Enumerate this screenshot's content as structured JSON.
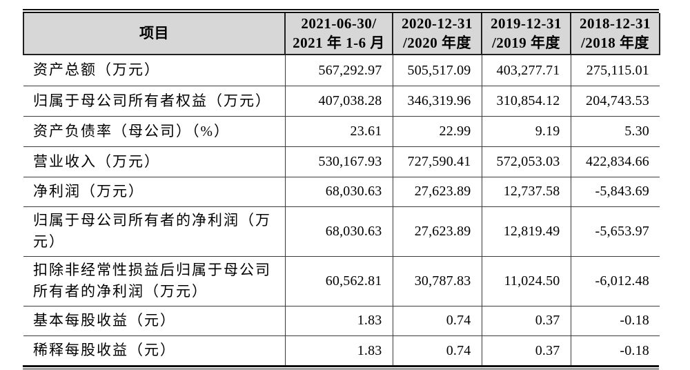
{
  "colors": {
    "header_bg": "#d7d7d7",
    "border": "#3a3a3a",
    "rule": "#0d0d0d",
    "text": "#000000",
    "page_bg": "#ffffff"
  },
  "table": {
    "header": {
      "item_label": "项目",
      "periods": [
        {
          "line1": "2021-06-30/",
          "line2": "2021 年 1-6 月"
        },
        {
          "line1": "2020-12-31",
          "line2": "/2020 年度"
        },
        {
          "line1": "2019-12-31",
          "line2": "/2019 年度"
        },
        {
          "line1": "2018-12-31",
          "line2": "/2018 年度"
        }
      ]
    },
    "rows": [
      {
        "label": "资产总额（万元）",
        "values": [
          "567,292.97",
          "505,517.09",
          "403,277.71",
          "275,115.01"
        ]
      },
      {
        "label": "归属于母公司所有者权益（万元）",
        "values": [
          "407,038.28",
          "346,319.96",
          "310,854.12",
          "204,743.53"
        ]
      },
      {
        "label": "资产负债率（母公司）（%）",
        "values": [
          "23.61",
          "22.99",
          "9.19",
          "5.30"
        ]
      },
      {
        "label": "营业收入（万元）",
        "values": [
          "530,167.93",
          "727,590.41",
          "572,053.03",
          "422,834.66"
        ]
      },
      {
        "label": "净利润（万元）",
        "values": [
          "68,030.63",
          "27,623.89",
          "12,737.58",
          "-5,843.69"
        ]
      },
      {
        "label": "归属于母公司所有者的净利润（万元）",
        "values": [
          "68,030.63",
          "27,623.89",
          "12,819.49",
          "-5,653.97"
        ]
      },
      {
        "label": "扣除非经常性损益后归属于母公司所有者的净利润（万元）",
        "values": [
          "60,562.81",
          "30,787.83",
          "11,024.50",
          "-6,012.48"
        ]
      },
      {
        "label": "基本每股收益（元）",
        "values": [
          "1.83",
          "0.74",
          "0.37",
          "-0.18"
        ]
      },
      {
        "label": "稀释每股收益（元）",
        "values": [
          "1.83",
          "0.74",
          "0.37",
          "-0.18"
        ]
      }
    ]
  }
}
